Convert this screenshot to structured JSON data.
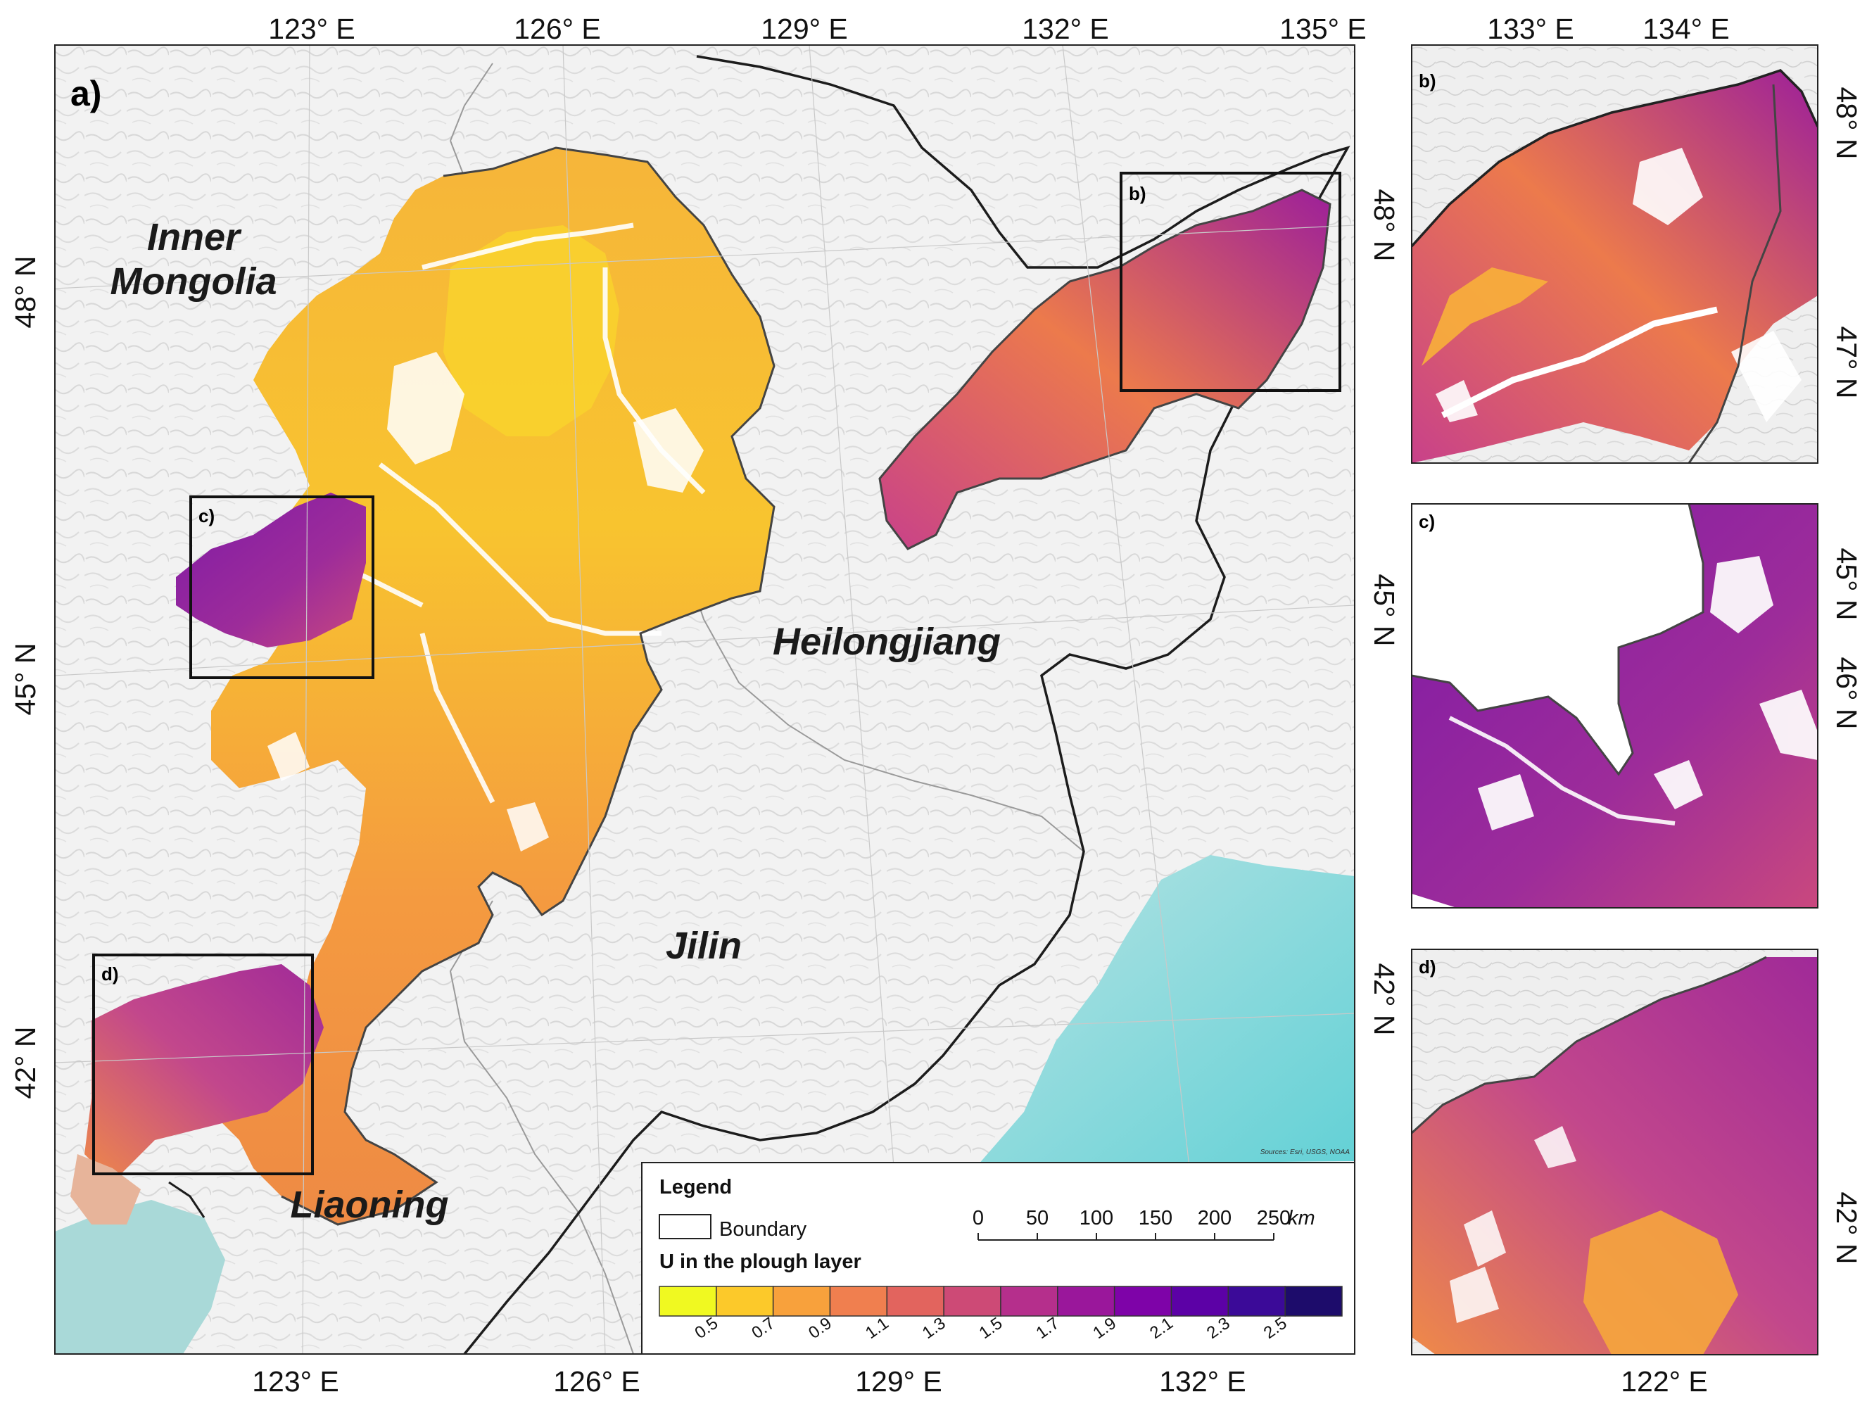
{
  "main_map": {
    "panel_label": "a)",
    "top_ticks": [
      "123° E",
      "126° E",
      "129° E",
      "132° E",
      "135° E"
    ],
    "bottom_ticks": [
      "123° E",
      "126° E",
      "129° E",
      "132° E"
    ],
    "left_ticks": [
      "48° N",
      "45° N",
      "42° N"
    ],
    "right_ticks": [
      "48° N",
      "45° N",
      "42° N"
    ],
    "regions": {
      "inner_mongolia_line1": "Inner",
      "inner_mongolia_line2": "Mongolia",
      "heilongjiang": "Heilongjiang",
      "jilin": "Jilin",
      "liaoning": "Liaoning"
    },
    "inset_boxes": [
      "b)",
      "c)",
      "d)"
    ],
    "attribution": "Sources: Esri, USGS, NOAA"
  },
  "legend": {
    "title": "Legend",
    "boundary_label": "Boundary",
    "colorbar_title": "U in the plough layer",
    "colorbar_ticks": [
      "0.5",
      "0.7",
      "0.9",
      "1.1",
      "1.3",
      "1.5",
      "1.7",
      "1.9",
      "2.1",
      "2.3",
      "2.5"
    ],
    "colors": [
      "#f0f921",
      "#fcc92a",
      "#f8a13c",
      "#f07f4f",
      "#e2645e",
      "#cd4a76",
      "#b52f8c",
      "#9a179b",
      "#7e03a8",
      "#5c01a6",
      "#3b0a98",
      "#1d0c6b"
    ],
    "scale_ticks": [
      "0",
      "50",
      "100",
      "150",
      "200",
      "250"
    ],
    "scale_unit": "km"
  },
  "inset_b": {
    "label": "b)",
    "top_ticks": [
      "133° E",
      "134° E"
    ],
    "right_ticks": [
      "48° N",
      "47° N"
    ]
  },
  "inset_c": {
    "label": "c)",
    "right_ticks": [
      "45° N",
      "46° N"
    ]
  },
  "inset_d": {
    "label": "d)",
    "right_ticks": [
      "42° N"
    ],
    "bottom_ticks": [
      "122° E"
    ]
  }
}
